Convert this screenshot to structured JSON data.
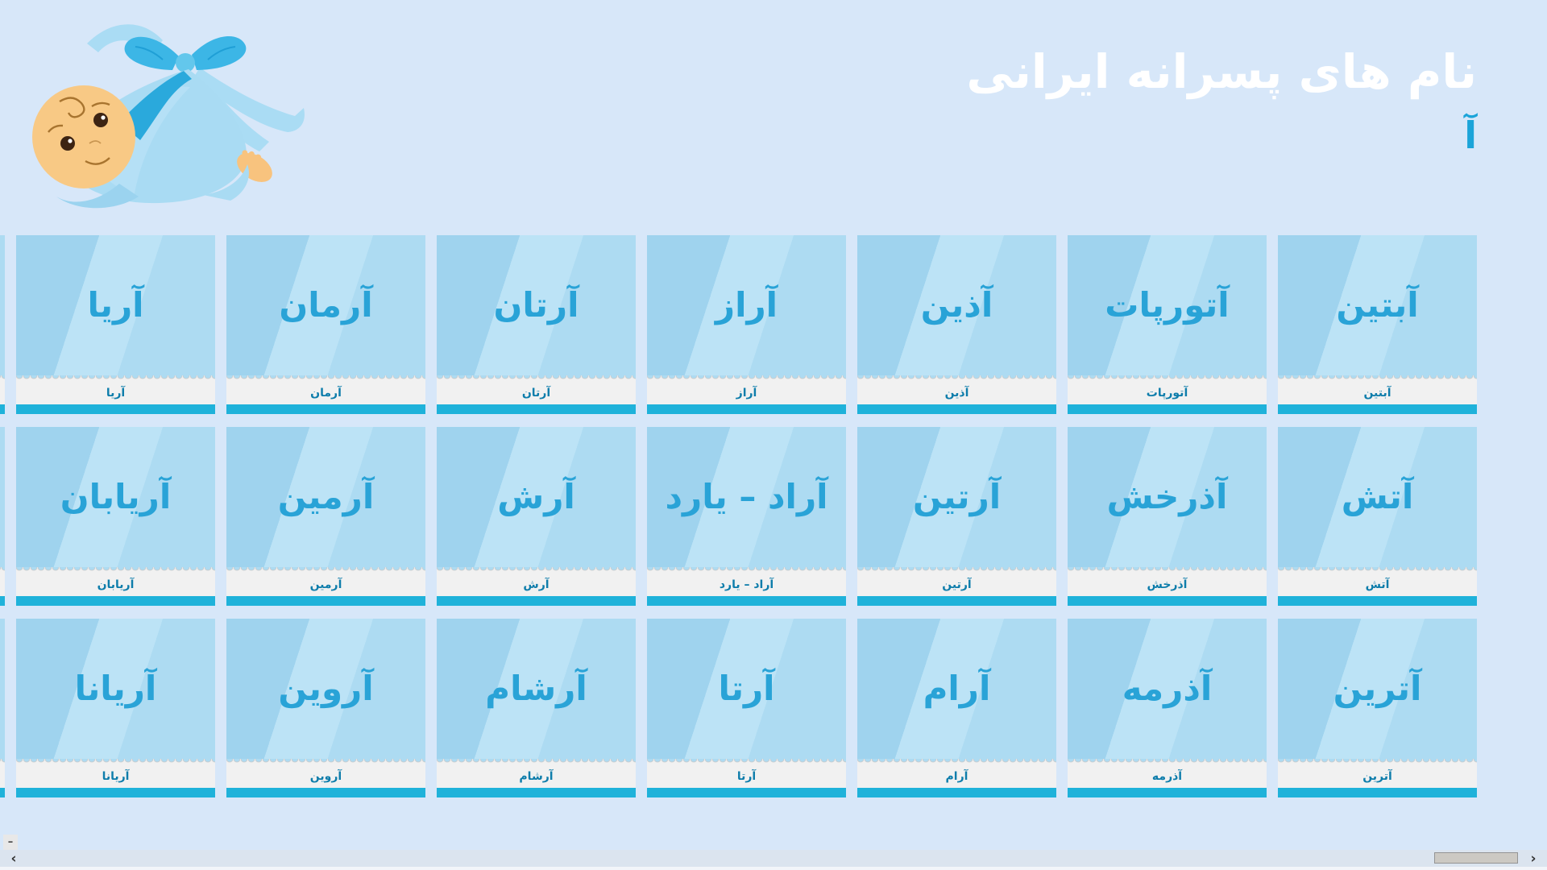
{
  "header": {
    "title": "نام های پسرانه ایرانی",
    "letter": "آ"
  },
  "grid": {
    "rows": [
      {
        "cards": [
          {
            "name": "آبتین"
          },
          {
            "name": "آتورپات"
          },
          {
            "name": "آذین"
          },
          {
            "name": "آراز"
          },
          {
            "name": "آرتان"
          },
          {
            "name": "آرمان"
          },
          {
            "name": "آریا"
          }
        ]
      },
      {
        "cards": [
          {
            "name": "آتش"
          },
          {
            "name": "آذرخش"
          },
          {
            "name": "آرتین"
          },
          {
            "name": "آراد – یارد"
          },
          {
            "name": "آرش"
          },
          {
            "name": "آرمین"
          },
          {
            "name": "آریابان"
          }
        ]
      },
      {
        "cards": [
          {
            "name": "آترین"
          },
          {
            "name": "آذرمه"
          },
          {
            "name": "آرام"
          },
          {
            "name": "آرتا"
          },
          {
            "name": "آرشام"
          },
          {
            "name": "آروین"
          },
          {
            "name": "آریانا"
          }
        ]
      }
    ]
  },
  "controls": {
    "minimize_label": "–"
  },
  "scrollbar": {
    "left_arrow": "‹",
    "right_arrow": "›"
  },
  "icons": {
    "baby": "baby-in-blue-blanket-illustration"
  },
  "colors": {
    "page_bg": "#d7e7f9",
    "title_text": "#ffffff",
    "letter_text": "#1ba4d9",
    "card_bg": "#a6d7f0",
    "card_name_text": "#29a3d7",
    "card_label_text": "#0e7dab",
    "card_label_bg": "#f1f1f1",
    "card_accent_bar": "#1fb2da"
  }
}
